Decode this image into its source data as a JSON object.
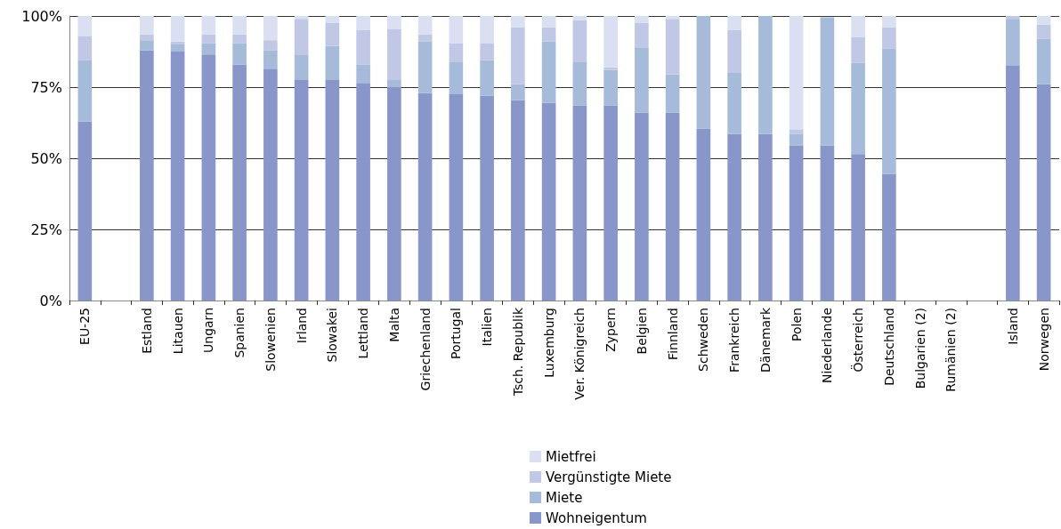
{
  "chart_data": {
    "type": "bar",
    "stacked": true,
    "categories": [
      "EU-25",
      null,
      "Estland",
      "Litauen",
      "Ungarn",
      "Spanien",
      "Slowenien",
      "Irland",
      "Slowakei",
      "Lettland",
      "Malta",
      "Griechenland",
      "Portugal",
      "Italien",
      "Tsch. Republik",
      "Luxemburg",
      "Ver. Königreich",
      "Zypern",
      "Belgien",
      "Finnland",
      "Schweden",
      "Frankreich",
      "Dänemark",
      "Polen",
      "Niederlande",
      "Österreich",
      "Deutschland",
      "Bulgarien (2)",
      "Rumänien (2)",
      null,
      "Island",
      "Norwegen"
    ],
    "series": [
      {
        "name": "Wohneigentum",
        "color": "#8996c9",
        "values": [
          63,
          null,
          88,
          87.5,
          86.5,
          83,
          81.5,
          77.5,
          77.5,
          76.5,
          75,
          73,
          72.5,
          72,
          70.5,
          69.5,
          68.5,
          68.5,
          66,
          66,
          60.5,
          58.5,
          58.5,
          54.5,
          54.5,
          51.5,
          44.5,
          null,
          null,
          null,
          82.5,
          76
        ]
      },
      {
        "name": "Miete",
        "color": "#a6bbd9",
        "values": [
          21.5,
          null,
          3.5,
          2.5,
          4,
          7.5,
          6.5,
          9,
          12,
          6.5,
          2.5,
          18,
          11.5,
          12.5,
          5.5,
          21.5,
          15.5,
          12.5,
          23,
          13.5,
          39.5,
          21.5,
          41.5,
          4,
          45,
          32,
          44,
          null,
          null,
          null,
          16.5,
          16
        ]
      },
      {
        "name": "Vergünstigte Miete",
        "color": "#c0c8e6",
        "values": [
          8.5,
          null,
          2,
          1,
          3,
          3,
          3.5,
          12.5,
          8,
          12,
          18,
          2.5,
          6.5,
          6,
          20,
          5,
          14.5,
          1,
          8.5,
          19.5,
          0,
          15,
          0,
          1.5,
          null,
          9,
          7.5,
          null,
          null,
          null,
          1,
          5
        ]
      },
      {
        "name": "Mietfrei",
        "color": "#dadff2",
        "values": [
          7,
          null,
          6.5,
          9,
          6.5,
          6.5,
          8.5,
          1,
          2.5,
          5,
          4.5,
          6.5,
          9.5,
          9.5,
          4,
          4,
          1.5,
          18,
          2.5,
          1,
          0,
          5,
          0,
          40,
          0,
          7.5,
          4,
          null,
          null,
          null,
          0,
          3
        ]
      }
    ],
    "ylim": [
      0,
      100
    ],
    "yticks": [
      {
        "value": 0,
        "label": "0%"
      },
      {
        "value": 25,
        "label": "25%"
      },
      {
        "value": 50,
        "label": "50%"
      },
      {
        "value": 75,
        "label": "75%"
      },
      {
        "value": 100,
        "label": "100%"
      }
    ],
    "grid": "y",
    "legend": "bottom"
  }
}
